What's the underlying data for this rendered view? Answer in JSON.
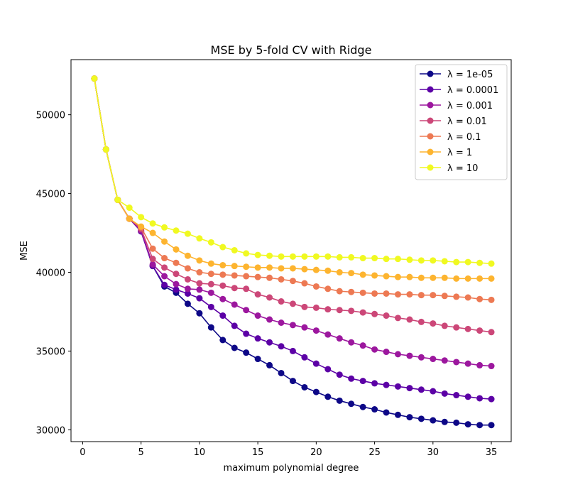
{
  "chart_data": {
    "type": "line",
    "title": "MSE by 5-fold CV with Ridge",
    "xlabel": "maximum polynomial degree",
    "ylabel": "MSE",
    "xlim": [
      -1,
      36.7
    ],
    "ylim": [
      29250,
      53500
    ],
    "xticks": [
      0,
      5,
      10,
      15,
      20,
      25,
      30,
      35
    ],
    "yticks": [
      30000,
      35000,
      40000,
      45000,
      50000
    ],
    "grid": false,
    "legend_position": "top-right",
    "legend_prefix": "λ = ",
    "x": [
      1,
      2,
      3,
      4,
      5,
      6,
      7,
      8,
      9,
      10,
      11,
      12,
      13,
      14,
      15,
      16,
      17,
      18,
      19,
      20,
      21,
      22,
      23,
      24,
      25,
      26,
      27,
      28,
      29,
      30,
      31,
      32,
      33,
      34,
      35
    ],
    "series": [
      {
        "name": "1e-05",
        "color": "#0d0887",
        "values": [
          52300,
          47800,
          44600,
          43400,
          42600,
          40400,
          39100,
          38700,
          38000,
          37400,
          36500,
          35700,
          35200,
          34900,
          34500,
          34100,
          33600,
          33100,
          32700,
          32400,
          32100,
          31850,
          31650,
          31450,
          31300,
          31100,
          30950,
          30800,
          30700,
          30600,
          30500,
          30450,
          30350,
          30300,
          30300
        ]
      },
      {
        "name": "0.0001",
        "color": "#5c01a6",
        "values": [
          52300,
          47800,
          44600,
          43400,
          42600,
          40400,
          39200,
          38900,
          38650,
          38350,
          37800,
          37250,
          36600,
          36100,
          35800,
          35550,
          35300,
          35000,
          34600,
          34200,
          33850,
          33500,
          33250,
          33100,
          32950,
          32850,
          32750,
          32650,
          32550,
          32450,
          32300,
          32200,
          32100,
          32000,
          31950
        ]
      },
      {
        "name": "0.001",
        "color": "#9c179e",
        "values": [
          52300,
          47800,
          44600,
          43400,
          42650,
          40500,
          39750,
          39250,
          38950,
          38900,
          38700,
          38300,
          37950,
          37600,
          37250,
          37000,
          36800,
          36650,
          36500,
          36300,
          36050,
          35800,
          35550,
          35350,
          35100,
          34950,
          34800,
          34700,
          34600,
          34500,
          34400,
          34300,
          34200,
          34100,
          34050
        ]
      },
      {
        "name": "0.01",
        "color": "#cc4778",
        "values": [
          52300,
          47800,
          44600,
          43400,
          42750,
          40850,
          40300,
          39900,
          39550,
          39300,
          39250,
          39150,
          39000,
          38950,
          38600,
          38400,
          38150,
          38000,
          37800,
          37750,
          37650,
          37600,
          37550,
          37450,
          37350,
          37250,
          37100,
          37000,
          36850,
          36750,
          36600,
          36500,
          36400,
          36300,
          36200
        ]
      },
      {
        "name": "0.1",
        "color": "#ed7953",
        "values": [
          52300,
          47800,
          44600,
          43400,
          42850,
          41500,
          40900,
          40600,
          40250,
          40000,
          39900,
          39850,
          39800,
          39750,
          39700,
          39650,
          39550,
          39450,
          39300,
          39100,
          38950,
          38800,
          38750,
          38700,
          38650,
          38650,
          38600,
          38600,
          38550,
          38550,
          38500,
          38450,
          38400,
          38300,
          38250
        ]
      },
      {
        "name": "1",
        "color": "#fdb42f",
        "values": [
          52300,
          47800,
          44600,
          43400,
          42900,
          42500,
          41950,
          41450,
          41050,
          40750,
          40550,
          40450,
          40400,
          40350,
          40300,
          40300,
          40250,
          40250,
          40200,
          40150,
          40100,
          40000,
          39950,
          39850,
          39800,
          39750,
          39700,
          39700,
          39650,
          39650,
          39650,
          39600,
          39600,
          39600,
          39600
        ]
      },
      {
        "name": "10",
        "color": "#f0f921",
        "values": [
          52300,
          47800,
          44600,
          44100,
          43500,
          43100,
          42850,
          42650,
          42450,
          42150,
          41900,
          41600,
          41400,
          41200,
          41100,
          41050,
          41000,
          41000,
          41000,
          41000,
          41000,
          40950,
          40950,
          40900,
          40900,
          40850,
          40850,
          40800,
          40750,
          40750,
          40700,
          40650,
          40650,
          40600,
          40550
        ]
      }
    ]
  }
}
